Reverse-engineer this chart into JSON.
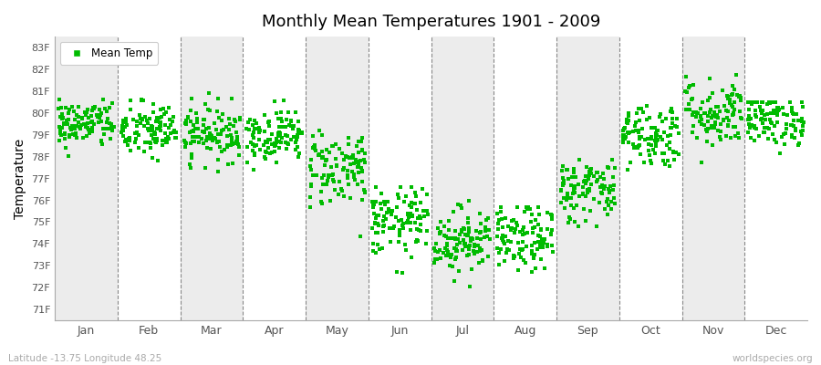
{
  "title": "Monthly Mean Temperatures 1901 - 2009",
  "ylabel": "Temperature",
  "xlabel_months": [
    "Jan",
    "Feb",
    "Mar",
    "Apr",
    "May",
    "Jun",
    "Jul",
    "Aug",
    "Sep",
    "Oct",
    "Nov",
    "Dec"
  ],
  "yticks": [
    71,
    72,
    73,
    74,
    75,
    76,
    77,
    78,
    79,
    80,
    81,
    82,
    83
  ],
  "ytick_labels": [
    "71F",
    "72F",
    "73F",
    "74F",
    "75F",
    "76F",
    "77F",
    "78F",
    "79F",
    "80F",
    "81F",
    "82F",
    "83F"
  ],
  "ylim": [
    70.5,
    83.5
  ],
  "dot_color": "#00BB00",
  "dot_size": 5,
  "legend_label": "Mean Temp",
  "footer_left": "Latitude -13.75 Longitude 48.25",
  "footer_right": "worldspecies.org",
  "bg_color": "#FFFFFF",
  "band_colors": [
    "#ECECEC",
    "#FFFFFF"
  ],
  "num_years": 109,
  "seed": 42,
  "monthly_means": [
    79.5,
    79.2,
    79.1,
    79.0,
    77.5,
    75.0,
    74.2,
    74.2,
    76.5,
    79.0,
    80.0,
    79.7
  ],
  "monthly_stds": [
    0.55,
    0.65,
    0.65,
    0.6,
    0.9,
    0.8,
    0.75,
    0.75,
    0.75,
    0.75,
    0.8,
    0.6
  ],
  "monthly_mins": [
    77.8,
    77.0,
    77.2,
    77.2,
    74.0,
    72.0,
    71.5,
    71.2,
    74.5,
    76.8,
    77.5,
    77.8
  ],
  "monthly_maxs": [
    80.6,
    81.2,
    81.2,
    81.2,
    79.2,
    76.6,
    76.0,
    75.7,
    78.3,
    80.5,
    82.8,
    80.5
  ]
}
